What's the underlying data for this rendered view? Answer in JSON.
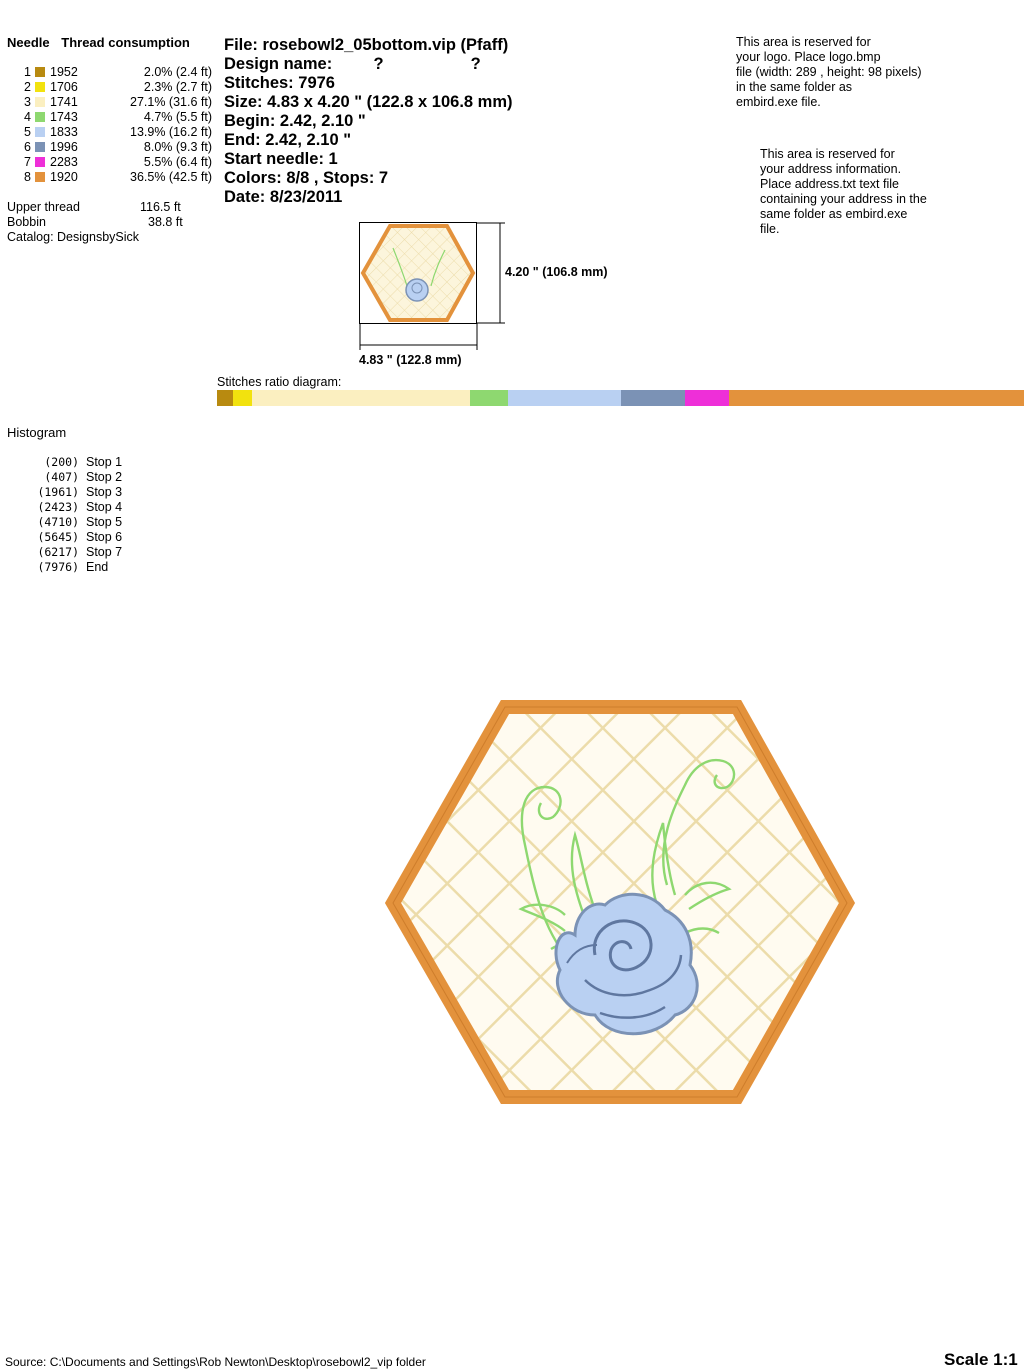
{
  "threads": {
    "header_needle": "Needle",
    "header_consumption": "Thread consumption",
    "items": [
      {
        "num": "1",
        "color": "#b88a10",
        "code": "1952",
        "pct": "2.0% (2.4 ft)",
        "share": 2.0
      },
      {
        "num": "2",
        "color": "#f2e20e",
        "code": "1706",
        "pct": "2.3% (2.7 ft)",
        "share": 2.3
      },
      {
        "num": "3",
        "color": "#fbefc0",
        "code": "1741",
        "pct": "27.1% (31.6 ft)",
        "share": 27.1
      },
      {
        "num": "4",
        "color": "#8ed870",
        "code": "1743",
        "pct": "4.7% (5.5 ft)",
        "share": 4.7
      },
      {
        "num": "5",
        "color": "#b9d0f2",
        "code": "1833",
        "pct": "13.9% (16.2 ft)",
        "share": 13.9
      },
      {
        "num": "6",
        "color": "#7b92b5",
        "code": "1996",
        "pct": "8.0% (9.3 ft)",
        "share": 8.0
      },
      {
        "num": "7",
        "color": "#ee2fd8",
        "code": "2283",
        "pct": "5.5% (6.4 ft)",
        "share": 5.5
      },
      {
        "num": "8",
        "color": "#e3923c",
        "code": "1920",
        "pct": "36.5% (42.5 ft)",
        "share": 36.5
      }
    ]
  },
  "totals": {
    "upper_label": "Upper thread",
    "upper_value": "116.5 ft",
    "bobbin_label": "Bobbin",
    "bobbin_value": "38.8 ft",
    "catalog": "Catalog: DesignsbySick"
  },
  "info": {
    "file": "File: rosebowl2_05bottom.vip  (Pfaff)",
    "design_name": "Design name:         ?                   ?",
    "stitches": "Stitches: 7976",
    "size": "Size: 4.83 x 4.20 \" (122.8 x 106.8 mm)",
    "begin": "Begin: 2.42, 2.10 \"",
    "end": "End: 2.42, 2.10 \"",
    "start_needle": "Start needle: 1",
    "colors_stops": "Colors: 8/8 , Stops: 7",
    "date": "Date: 8/23/2011"
  },
  "logo_note": [
    "This area is reserved for",
    "your logo. Place logo.bmp",
    "file (width: 289 , height: 98 pixels)",
    "in the same folder as",
    "embird.exe file."
  ],
  "address_note": [
    "This area is reserved for",
    "your address information.",
    "Place address.txt text file",
    "containing your address in the",
    "same folder as embird.exe",
    "file."
  ],
  "thumb": {
    "height_label": "4.20 \" (106.8 mm)",
    "width_label": "4.83 \" (122.8 mm)"
  },
  "ratio_label": "Stitches ratio diagram:",
  "histogram": {
    "title": "Histogram",
    "rows": [
      {
        "count": "(200)",
        "label": "Stop 1"
      },
      {
        "count": "(407)",
        "label": "Stop 2"
      },
      {
        "count": "(1961)",
        "label": "Stop 3"
      },
      {
        "count": "(2423)",
        "label": "Stop 4"
      },
      {
        "count": "(4710)",
        "label": "Stop 5"
      },
      {
        "count": "(5645)",
        "label": "Stop 6"
      },
      {
        "count": "(6217)",
        "label": "Stop 7"
      },
      {
        "count": "(7976)",
        "label": "End"
      }
    ]
  },
  "footer": {
    "source": "Source: C:\\Documents and Settings\\Rob Newton\\Desktop\\rosebowl2_vip folder",
    "scale": "Scale 1:1"
  }
}
